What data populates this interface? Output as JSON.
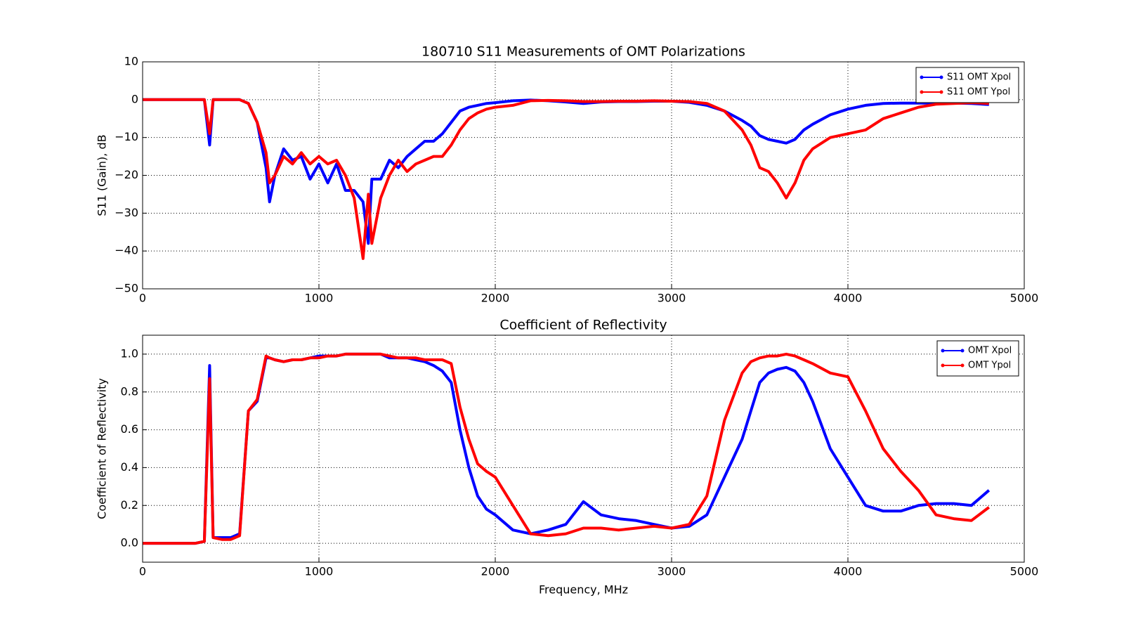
{
  "chart_data": [
    {
      "type": "line",
      "title": "180710 S11 Measurements of OMT Polarizations",
      "ylabel": "S11 (Gain), dB",
      "x": [
        0,
        100,
        200,
        300,
        350,
        380,
        400,
        450,
        500,
        550,
        600,
        650,
        700,
        720,
        750,
        800,
        850,
        900,
        950,
        1000,
        1050,
        1100,
        1150,
        1200,
        1250,
        1280,
        1300,
        1350,
        1400,
        1450,
        1500,
        1550,
        1600,
        1650,
        1700,
        1750,
        1800,
        1850,
        1900,
        1950,
        2000,
        2100,
        2200,
        2300,
        2400,
        2500,
        2600,
        2700,
        2800,
        2900,
        3000,
        3100,
        3200,
        3300,
        3400,
        3450,
        3500,
        3550,
        3600,
        3650,
        3700,
        3750,
        3800,
        3900,
        4000,
        4100,
        4200,
        4300,
        4400,
        4500,
        4600,
        4700,
        4800
      ],
      "series": [
        {
          "name": "S11 OMT Xpol",
          "color": "#0000ff",
          "values": [
            0,
            0,
            0,
            0,
            0,
            -12,
            0,
            0,
            0,
            0,
            -1,
            -6,
            -18,
            -27,
            -20,
            -13,
            -16,
            -15,
            -21,
            -17,
            -22,
            -17,
            -24,
            -24,
            -27,
            -38,
            -21,
            -21,
            -16,
            -18,
            -15,
            -13,
            -11,
            -11,
            -9,
            -6,
            -3,
            -2,
            -1.5,
            -1,
            -0.8,
            -0.3,
            -0.1,
            -0.3,
            -0.6,
            -1,
            -0.6,
            -0.5,
            -0.5,
            -0.4,
            -0.4,
            -0.7,
            -1.5,
            -3,
            -5.5,
            -7,
            -9.5,
            -10.5,
            -11,
            -11.5,
            -10.5,
            -8,
            -6.5,
            -4,
            -2.5,
            -1.5,
            -1,
            -0.9,
            -0.9,
            -0.9,
            -0.9,
            -1,
            -1.3
          ]
        },
        {
          "name": "S11 OMT Ypol",
          "color": "#ff0000",
          "values": [
            0,
            0,
            0,
            0,
            0,
            -9,
            0,
            0,
            0,
            0,
            -1,
            -6,
            -14,
            -22,
            -20,
            -15,
            -17,
            -14,
            -17,
            -15,
            -17,
            -16,
            -20,
            -26,
            -42,
            -25,
            -38,
            -26,
            -20,
            -16,
            -19,
            -17,
            -16,
            -15,
            -15,
            -12,
            -8,
            -5,
            -3.5,
            -2.5,
            -2,
            -1.5,
            -0.3,
            -0.2,
            -0.3,
            -0.5,
            -0.5,
            -0.4,
            -0.4,
            -0.3,
            -0.4,
            -0.5,
            -1,
            -3,
            -8,
            -12,
            -18,
            -19,
            -22,
            -26,
            -22,
            -16,
            -13,
            -10,
            -9,
            -8,
            -5,
            -3.5,
            -2,
            -1.2,
            -1,
            -0.8,
            -1
          ]
        }
      ],
      "xlim": [
        0,
        5000
      ],
      "xticks": [
        0,
        1000,
        2000,
        3000,
        4000,
        5000
      ],
      "ylim": [
        -50,
        10
      ],
      "yticks": [
        {
          "value": -50,
          "label": "−50"
        },
        {
          "value": -40,
          "label": "−40"
        },
        {
          "value": -30,
          "label": "−30"
        },
        {
          "value": -20,
          "label": "−20"
        },
        {
          "value": -10,
          "label": "−10"
        },
        0,
        10
      ],
      "grid": true,
      "legend": "upper right"
    },
    {
      "type": "line",
      "title": "Coefficient of Reflectivity",
      "ylabel": "Coefficient of Reflectivity",
      "xlabel": "Frequency, MHz",
      "x": [
        0,
        100,
        200,
        300,
        350,
        380,
        400,
        450,
        500,
        550,
        600,
        650,
        700,
        720,
        750,
        800,
        850,
        900,
        950,
        1000,
        1050,
        1100,
        1150,
        1200,
        1250,
        1280,
        1300,
        1350,
        1400,
        1450,
        1500,
        1550,
        1600,
        1650,
        1700,
        1750,
        1800,
        1850,
        1900,
        1950,
        2000,
        2100,
        2200,
        2300,
        2400,
        2500,
        2600,
        2700,
        2800,
        2900,
        3000,
        3100,
        3200,
        3300,
        3400,
        3450,
        3500,
        3550,
        3600,
        3650,
        3700,
        3750,
        3800,
        3900,
        4000,
        4100,
        4200,
        4300,
        4400,
        4500,
        4600,
        4700,
        4800
      ],
      "series": [
        {
          "name": "OMT Xpol",
          "color": "#0000ff",
          "values": [
            0,
            0,
            0,
            0,
            0.01,
            0.94,
            0.03,
            0.03,
            0.03,
            0.05,
            0.7,
            0.75,
            0.98,
            0.98,
            0.97,
            0.96,
            0.97,
            0.97,
            0.98,
            0.99,
            0.99,
            0.99,
            1,
            1,
            1,
            1,
            1,
            1,
            0.98,
            0.98,
            0.98,
            0.97,
            0.96,
            0.94,
            0.91,
            0.85,
            0.6,
            0.4,
            0.25,
            0.18,
            0.15,
            0.07,
            0.05,
            0.07,
            0.1,
            0.22,
            0.15,
            0.13,
            0.12,
            0.1,
            0.08,
            0.09,
            0.15,
            0.35,
            0.55,
            0.7,
            0.85,
            0.9,
            0.92,
            0.93,
            0.91,
            0.85,
            0.75,
            0.5,
            0.35,
            0.2,
            0.17,
            0.17,
            0.2,
            0.21,
            0.21,
            0.2,
            0.28
          ]
        },
        {
          "name": "OMT Ypol",
          "color": "#ff0000",
          "values": [
            0,
            0,
            0,
            0,
            0.01,
            0.87,
            0.03,
            0.02,
            0.02,
            0.04,
            0.7,
            0.76,
            0.99,
            0.98,
            0.97,
            0.96,
            0.97,
            0.97,
            0.98,
            0.98,
            0.99,
            0.99,
            1,
            1,
            1,
            1,
            1,
            1,
            0.99,
            0.98,
            0.98,
            0.98,
            0.97,
            0.97,
            0.97,
            0.95,
            0.72,
            0.55,
            0.42,
            0.38,
            0.35,
            0.2,
            0.05,
            0.04,
            0.05,
            0.08,
            0.08,
            0.07,
            0.08,
            0.09,
            0.08,
            0.1,
            0.25,
            0.65,
            0.9,
            0.96,
            0.98,
            0.99,
            0.99,
            1,
            0.99,
            0.97,
            0.95,
            0.9,
            0.88,
            0.7,
            0.5,
            0.38,
            0.28,
            0.15,
            0.13,
            0.12,
            0.19
          ]
        }
      ],
      "xlim": [
        0,
        5000
      ],
      "xticks": [
        0,
        1000,
        2000,
        3000,
        4000,
        5000
      ],
      "ylim": [
        -0.1,
        1.1
      ],
      "yticks": [
        {
          "value": 0,
          "label": "0.0"
        },
        0.2,
        0.4,
        0.6,
        0.8,
        {
          "value": 1,
          "label": "1.0"
        }
      ],
      "grid": true,
      "legend": "upper right"
    }
  ]
}
